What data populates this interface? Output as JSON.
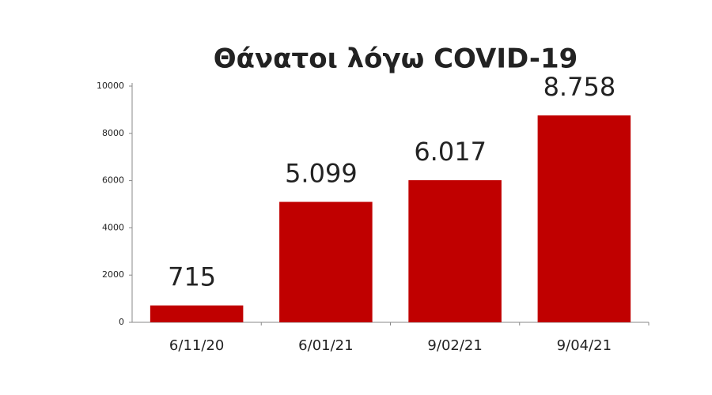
{
  "chart_data": {
    "type": "bar",
    "title": "Θάνατοι λόγω COVID-19",
    "categories": [
      "6/11/20",
      "6/01/21",
      "9/02/21",
      "9/04/21"
    ],
    "values": [
      715,
      5099,
      6017,
      8758
    ],
    "value_labels": [
      "715",
      "5.099",
      "6.017",
      "8.758"
    ],
    "color": "#c00000",
    "ylim": [
      0,
      10000
    ],
    "yticks": [
      0,
      2000,
      4000,
      6000,
      8000,
      10000
    ],
    "grid": false
  }
}
